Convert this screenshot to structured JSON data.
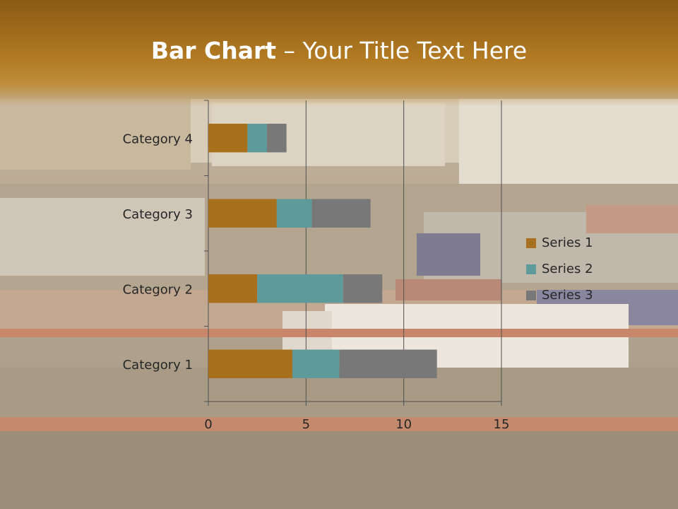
{
  "title": {
    "bold": "Bar Chart",
    "rest": " – Your Title Text Here"
  },
  "colors": {
    "series_1": "#a8701c",
    "series_2": "#5f9a9a",
    "series_3": "#787878",
    "axis": "#505050",
    "text": "#262626"
  },
  "chart_data": {
    "type": "bar",
    "orientation": "horizontal",
    "stacked": true,
    "categories": [
      "Category 1",
      "Category 2",
      "Category 3",
      "Category 4"
    ],
    "series": [
      {
        "name": "Series 1",
        "values": [
          4.3,
          2.5,
          3.5,
          2
        ]
      },
      {
        "name": "Series 2",
        "values": [
          2.4,
          4.4,
          1.8,
          1
        ]
      },
      {
        "name": "Series 3",
        "values": [
          5,
          2,
          3,
          1
        ]
      }
    ],
    "x_ticks": [
      "0",
      "5",
      "10",
      "15"
    ],
    "xlim": [
      0,
      15
    ],
    "grid": true,
    "legend": "right"
  }
}
